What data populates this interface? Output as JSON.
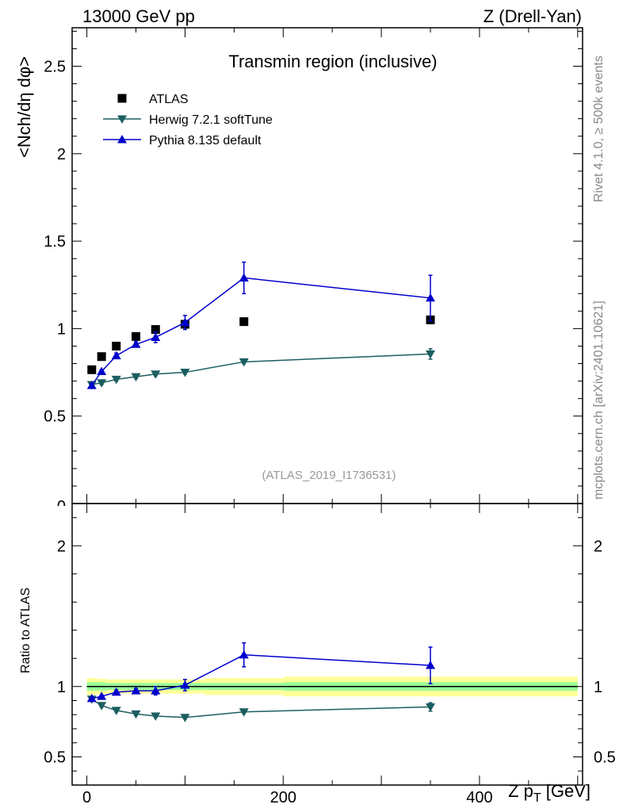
{
  "header": {
    "left": "13000 GeV pp",
    "right": "Z (Drell-Yan)"
  },
  "side_labels": {
    "rivet": "Rivet 4.1.0, ≥ 500k events",
    "mcplots": "mcplots.cern.ch [arXiv:2401.10621]"
  },
  "chart_data": [
    {
      "type": "scatter",
      "panel": "main",
      "title": "Transmin region (inclusive)",
      "annotation": "(ATLAS_2019_I1736531)",
      "ylabel": "<Nch/dη dφ>",
      "ylim": [
        0,
        2.72
      ],
      "xlim": [
        -15,
        505
      ],
      "yticks": [
        0.5,
        1,
        1.5,
        2,
        2.5
      ],
      "ytick_labels": [
        "0.5",
        "1",
        "1.5",
        "2",
        "2.5"
      ],
      "legend_position": "top-left",
      "series": [
        {
          "name": "ATLAS",
          "marker": "square",
          "color": "#000000",
          "x": [
            5,
            15,
            30,
            50,
            70,
            100,
            160,
            350
          ],
          "y": [
            0.765,
            0.84,
            0.9,
            0.955,
            0.995,
            1.025,
            1.04,
            1.05
          ]
        },
        {
          "name": "Herwig 7.2.1 softTune",
          "marker": "triangle-down",
          "color": "#1b5e60",
          "x": [
            5,
            15,
            30,
            50,
            70,
            100,
            160,
            350
          ],
          "y": [
            0.68,
            0.69,
            0.71,
            0.725,
            0.74,
            0.75,
            0.81,
            0.855
          ],
          "err": [
            0.01,
            0.01,
            0.01,
            0.01,
            0.01,
            0.01,
            0.01,
            0.03
          ]
        },
        {
          "name": "Pythia 8.135 default",
          "marker": "triangle-up",
          "color": "#0000cc",
          "x": [
            5,
            15,
            30,
            50,
            70,
            100,
            160,
            350
          ],
          "y": [
            0.675,
            0.755,
            0.845,
            0.91,
            0.95,
            1.035,
            1.29,
            1.175
          ],
          "err": [
            0.01,
            0.01,
            0.015,
            0.015,
            0.03,
            0.04,
            0.09,
            0.13
          ]
        }
      ]
    },
    {
      "type": "scatter",
      "panel": "ratio",
      "ylabel": "Ratio to ATLAS",
      "xlabel": "Z pT [GeV]",
      "ylim": [
        0.3,
        2.3
      ],
      "xlim": [
        -15,
        505
      ],
      "yticks": [
        0.5,
        1,
        2
      ],
      "ytick_labels": [
        "0.5",
        "1",
        "2"
      ],
      "xticks": [
        0,
        200,
        400
      ],
      "xtick_labels": [
        "0",
        "200",
        "400"
      ],
      "bands": {
        "edges": [
          0,
          10,
          20,
          40,
          60,
          80,
          120,
          200,
          500
        ],
        "green_half": [
          0.03,
          0.03,
          0.025,
          0.025,
          0.025,
          0.025,
          0.025,
          0.03
        ],
        "yellow_half": [
          0.06,
          0.055,
          0.05,
          0.05,
          0.05,
          0.05,
          0.06,
          0.07
        ]
      },
      "series": [
        {
          "name": "Herwig 7.2.1 softTune",
          "color": "#1b5e60",
          "x": [
            5,
            15,
            30,
            50,
            70,
            100,
            160,
            350
          ],
          "y": [
            0.91,
            0.865,
            0.83,
            0.805,
            0.79,
            0.78,
            0.82,
            0.855
          ],
          "err": [
            0.01,
            0.01,
            0.01,
            0.01,
            0.01,
            0.01,
            0.01,
            0.03
          ]
        },
        {
          "name": "Pythia 8.135 default",
          "color": "#0000cc",
          "x": [
            5,
            15,
            30,
            50,
            70,
            100,
            160,
            350
          ],
          "y": [
            0.915,
            0.93,
            0.96,
            0.97,
            0.97,
            1.01,
            1.225,
            1.15
          ],
          "err": [
            0.01,
            0.01,
            0.015,
            0.015,
            0.03,
            0.04,
            0.085,
            0.13
          ]
        }
      ]
    }
  ]
}
